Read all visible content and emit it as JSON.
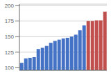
{
  "chart_data": {
    "type": "bar",
    "categories": [
      null,
      null,
      null,
      null,
      null,
      null,
      null,
      null,
      null,
      null,
      null,
      null,
      null,
      null,
      null,
      null,
      null,
      null,
      null,
      null,
      null
    ],
    "values": [
      108,
      115,
      116,
      117,
      130,
      132,
      135,
      140,
      143,
      145,
      147,
      148,
      150,
      153,
      160,
      168,
      175,
      175,
      176,
      176,
      190
    ],
    "colors": [
      "#4472c4",
      "#4472c4",
      "#4472c4",
      "#4472c4",
      "#4472c4",
      "#4472c4",
      "#4472c4",
      "#4472c4",
      "#4472c4",
      "#4472c4",
      "#4472c4",
      "#4472c4",
      "#4472c4",
      "#4472c4",
      "#4472c4",
      "#4472c4",
      "#c0504d",
      "#c0504d",
      "#c0504d",
      "#c0504d",
      "#c0504d"
    ],
    "ylim": [
      96,
      202
    ],
    "yticks": [
      100,
      125,
      150,
      175,
      200
    ],
    "grid": true,
    "tick_labels": "y"
  }
}
